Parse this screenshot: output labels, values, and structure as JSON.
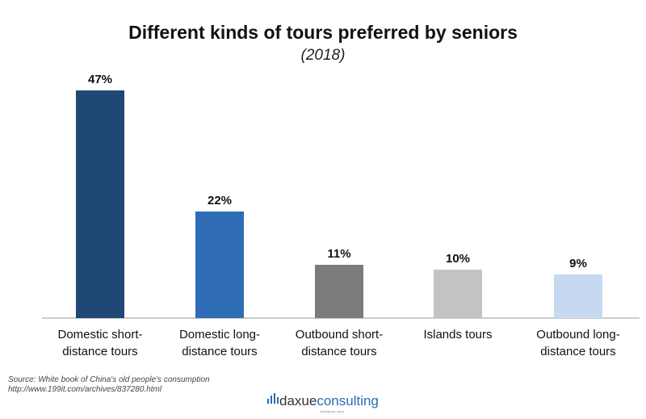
{
  "chart_data": {
    "type": "bar",
    "title": "Different kinds of tours preferred by seniors",
    "subtitle": "(2018)",
    "categories": [
      [
        "Domestic short-",
        "distance tours"
      ],
      [
        "Domestic long-",
        "distance tours"
      ],
      [
        "Outbound short-",
        "distance tours"
      ],
      [
        "Islands tours"
      ],
      [
        "Outbound long-",
        "distance tours"
      ]
    ],
    "values": [
      47,
      22,
      11,
      10,
      9
    ],
    "value_labels": [
      "47%",
      "22%",
      "11%",
      "10%",
      "9%"
    ],
    "colors": [
      "#1f4876",
      "#2e6db5",
      "#7b7b7b",
      "#c3c3c3",
      "#c6d9f1"
    ],
    "ylim": [
      0,
      50
    ],
    "grid": false,
    "legend": "none"
  },
  "source": {
    "line1": "Source: White book of China's old people's consumption",
    "line2": "http://www.199it.com/archives/837280.html"
  },
  "logo": {
    "name_part1": "daxue",
    "name_part2": "consulting",
    "tagline": "helping you grow"
  }
}
